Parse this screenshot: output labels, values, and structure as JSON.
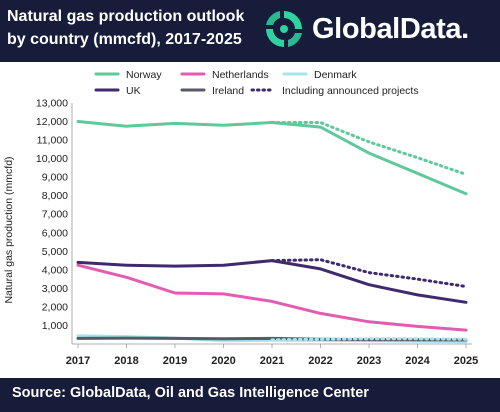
{
  "header": {
    "title_line1": "Natural gas production outlook",
    "title_line2": "by country (mmcfd), 2017-2025",
    "logo_text": "GlobalData."
  },
  "footer": {
    "source": "Source:  GlobalData, Oil and Gas Intelligence Center"
  },
  "chart_data": {
    "type": "line",
    "title": "Natural gas production outlook by country (mmcfd), 2017-2025",
    "xlabel": "",
    "ylabel": "Natural gas  production (mmcfd)",
    "x": [
      "2017",
      "2018",
      "2019",
      "2020",
      "2021",
      "2022",
      "2023",
      "2024",
      "2025"
    ],
    "ylim": [
      0,
      13000
    ],
    "yticks": [
      0,
      1000,
      2000,
      3000,
      4000,
      5000,
      6000,
      7000,
      8000,
      9000,
      10000,
      11000,
      12000,
      13000
    ],
    "ytick_labels": [
      "",
      "1,000",
      "2,000",
      "3,000",
      "4,000",
      "5,000",
      "6,000",
      "7,000",
      "8,000",
      "9,000",
      "10,000",
      "11,000",
      "12,000",
      "13,000"
    ],
    "grid": false,
    "legend_position": "top",
    "series": [
      {
        "name": "Norway",
        "color": "#5ec99a",
        "dashed": false,
        "values": [
          12000,
          11750,
          11900,
          11800,
          11950,
          11700,
          10300,
          9200,
          8100
        ]
      },
      {
        "name": "Netherlands",
        "color": "#e25db2",
        "dashed": false,
        "values": [
          4250,
          3600,
          2750,
          2700,
          2300,
          1650,
          1200,
          950,
          750
        ]
      },
      {
        "name": "Denmark",
        "color": "#a8e3ea",
        "dashed": false,
        "values": [
          450,
          400,
          320,
          180,
          200,
          200,
          180,
          150,
          120
        ]
      },
      {
        "name": "UK",
        "color": "#3f2a6e",
        "dashed": false,
        "values": [
          4400,
          4250,
          4200,
          4250,
          4500,
          4050,
          3200,
          2650,
          2250
        ]
      },
      {
        "name": "Ireland",
        "color": "#555a66",
        "dashed": false,
        "values": [
          300,
          320,
          300,
          280,
          300,
          260,
          240,
          230,
          220
        ]
      }
    ],
    "announced": {
      "name": "Including announced projects",
      "color": "#3f2a6e",
      "lines": [
        {
          "color": "#5ec99a",
          "x_start_index": 4,
          "values": [
            11950,
            11950,
            10900,
            10050,
            9150
          ]
        },
        {
          "color": "#3f2a6e",
          "x_start_index": 4,
          "values": [
            4500,
            4550,
            3850,
            3500,
            3100
          ]
        },
        {
          "color": "#a8e3ea",
          "x_start_index": 4,
          "values": [
            220,
            260,
            280,
            280,
            260
          ]
        }
      ]
    }
  }
}
